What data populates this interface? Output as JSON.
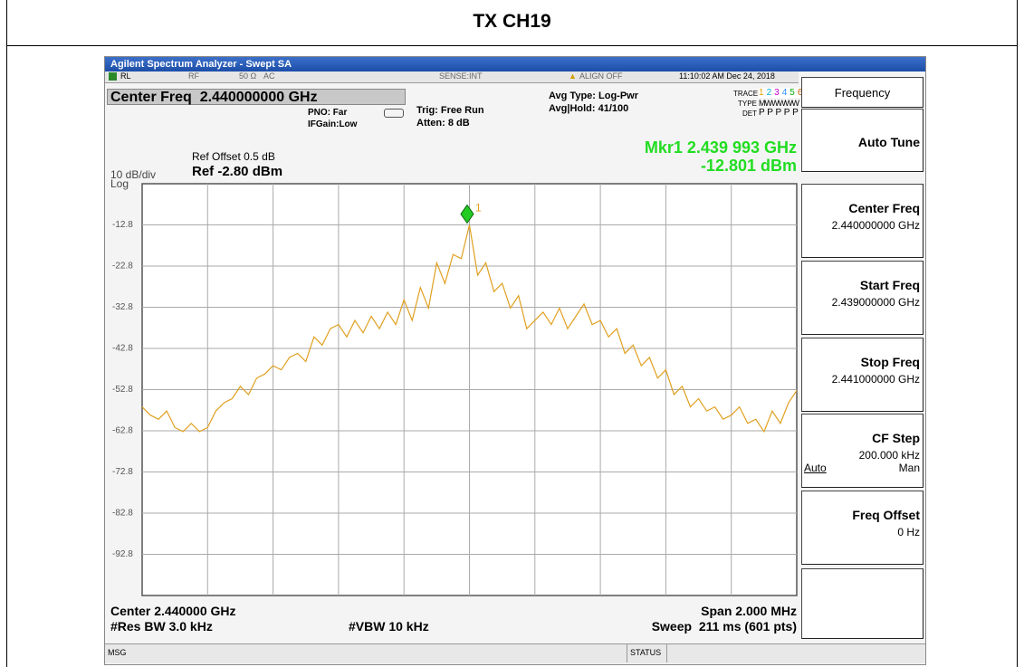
{
  "header": {
    "title": "TX CH19"
  },
  "window": {
    "title": "Agilent Spectrum Analyzer - Swept SA"
  },
  "status_bar": {
    "rl": "RL",
    "rf": "RF",
    "impedance": "50 Ω",
    "coupling": "AC",
    "sense": "SENSE:INT",
    "align": "ALIGN OFF",
    "time": "11:10:02 AM Dec 24, 2018"
  },
  "settings": {
    "center_freq": "Center Freq  2.440000000 GHz",
    "pno": "PNO: Far",
    "ifgain": "IFGain:Low",
    "trig": "Trig: Free Run",
    "atten": "Atten: 8 dB",
    "avg_type": "Avg Type: Log-Pwr",
    "avg_hold": "Avg|Hold: 41/100",
    "trace_label": "TRACE",
    "trace_numbers": [
      "1",
      "2",
      "3",
      "4",
      "5",
      "6"
    ],
    "type_label": "TYPE",
    "type_value": "MWWWWW",
    "det_label": "DET",
    "det_value": "P P P P P P"
  },
  "display": {
    "ref_offset": "Ref Offset 0.5 dB",
    "ref_level": "Ref -2.80 dBm",
    "scale": "10 dB/div",
    "log": "Log",
    "marker_freq": "Mkr1 2.439 993 GHz",
    "marker_amp": "-12.801 dBm"
  },
  "footer": {
    "center": "Center 2.440000 GHz",
    "span": "Span 2.000 MHz",
    "rbw": "#Res BW 3.0 kHz",
    "vbw": "#VBW 10 kHz",
    "sweep": "Sweep  211 ms (601 pts)"
  },
  "menu": {
    "title": "Frequency",
    "items": [
      {
        "label": "Auto Tune"
      },
      {
        "label": "Center Freq",
        "value": "2.440000000 GHz"
      },
      {
        "label": "Start Freq",
        "value": "2.439000000 GHz"
      },
      {
        "label": "Stop Freq",
        "value": "2.441000000 GHz"
      },
      {
        "label": "CF Step",
        "value": "200.000 kHz",
        "option_left": "Auto",
        "option_right": "Man"
      },
      {
        "label": "Freq Offset",
        "value": "0 Hz"
      }
    ]
  },
  "bottom_bar": {
    "msg": "MSG",
    "status": "STATUS"
  },
  "chart_data": {
    "type": "line",
    "color": "#e0a020",
    "x": [
      2.439,
      2.439025,
      2.43905,
      2.439075,
      2.4391,
      2.439125,
      2.43915,
      2.439175,
      2.4392,
      2.439225,
      2.43925,
      2.439275,
      2.4393,
      2.439325,
      2.43935,
      2.439375,
      2.4394,
      2.439425,
      2.43945,
      2.439475,
      2.4395,
      2.439525,
      2.43955,
      2.439575,
      2.4396,
      2.439625,
      2.43965,
      2.439675,
      2.4397,
      2.439725,
      2.43975,
      2.439775,
      2.4398,
      2.439825,
      2.43985,
      2.439875,
      2.4399,
      2.439925,
      2.43995,
      2.439975,
      2.44,
      2.440025,
      2.44005,
      2.440075,
      2.4401,
      2.440125,
      2.44015,
      2.440175,
      2.4402,
      2.440225,
      2.44025,
      2.440275,
      2.4403,
      2.440325,
      2.44035,
      2.440375,
      2.4404,
      2.440425,
      2.44045,
      2.440475,
      2.4405,
      2.440525,
      2.44055,
      2.440575,
      2.4406,
      2.440625,
      2.44065,
      2.440675,
      2.4407,
      2.440725,
      2.44075,
      2.440775,
      2.4408,
      2.440825,
      2.44085,
      2.440875,
      2.4409,
      2.440925,
      2.44095,
      2.440975,
      2.441
    ],
    "values": [
      -57,
      -59,
      -60,
      -58,
      -62,
      -63,
      -61,
      -63,
      -62,
      -58,
      -56,
      -55,
      -52,
      -54,
      -50,
      -49,
      -47,
      -48,
      -45,
      -44,
      -46,
      -40,
      -42,
      -38,
      -37,
      -40,
      -36,
      -39,
      -35,
      -38,
      -34,
      -37,
      -31,
      -36,
      -28,
      -33,
      -22,
      -27,
      -20,
      -21,
      -12.8,
      -25,
      -22,
      -29,
      -27,
      -33,
      -30,
      -38,
      -36,
      -34,
      -37,
      -33,
      -38,
      -35,
      -32,
      -37,
      -36,
      -40,
      -38,
      -44,
      -42,
      -47,
      -45,
      -50,
      -48,
      -54,
      -52,
      -57,
      -55,
      -58,
      -57,
      -60,
      -59,
      -57,
      -61,
      -60,
      -63,
      -58,
      -61,
      -56,
      -53
    ],
    "xlim": [
      2.439,
      2.441
    ],
    "ylim": [
      -102.8,
      -2.8
    ],
    "yticks": [
      -12.8,
      -22.8,
      -32.8,
      -42.8,
      -52.8,
      -62.8,
      -72.8,
      -82.8,
      -92.8
    ],
    "grid": true,
    "marker": {
      "x": 2.439993,
      "y": -12.801,
      "label": "1",
      "color": "#22cc22"
    }
  }
}
